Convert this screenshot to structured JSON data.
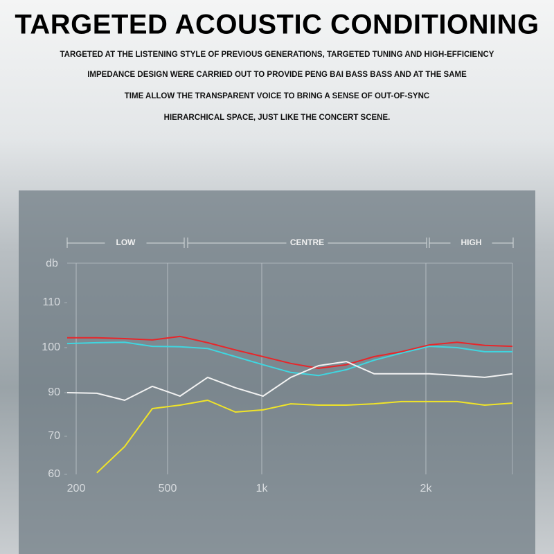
{
  "heading": "TARGETED ACOUSTIC CONDITIONING",
  "description": [
    "TARGETED AT THE LISTENING STYLE OF PREVIOUS GENERATIONS, TARGETED TUNING AND HIGH-EFFICIENCY",
    "IMPEDANCE DESIGN WERE CARRIED OUT TO PROVIDE PENG BAI BASS BASS AND AT THE SAME",
    "TIME ALLOW THE TRANSPARENT VOICE TO BRING A SENSE OF OUT-OF-SYNC",
    "HIERARCHICAL SPACE, JUST LIKE THE CONCERT SCENE."
  ],
  "chart_data": {
    "type": "line",
    "y_label": "db",
    "bands": [
      "LOW",
      "CENTRE",
      "HIGH"
    ],
    "x": [
      170,
      268,
      359,
      450,
      566,
      713,
      860,
      1008,
      1177,
      1346,
      1515,
      1684,
      1852,
      2021,
      2190,
      2358,
      2527
    ],
    "xlim": [
      170,
      2527
    ],
    "xticks": [
      200,
      500,
      {
        "value": 1000,
        "label": "1k"
      },
      {
        "value": 2000,
        "label": "2k"
      }
    ],
    "ylim": [
      60,
      110
    ],
    "yticks": [
      60,
      70,
      90,
      100,
      110
    ],
    "grid": true,
    "series": [
      {
        "name": "red",
        "color": "#e8262a",
        "values": [
          102.2,
          102.2,
          102,
          101.7,
          102.5,
          101.1,
          99.5,
          98,
          96.5,
          95.4,
          96.2,
          98,
          99.1,
          100.6,
          101.2,
          100.5,
          100.3
        ]
      },
      {
        "name": "cyan",
        "color": "#3fd6e0",
        "values": [
          100.9,
          101.1,
          101.2,
          100.3,
          100.2,
          99.8,
          98,
          96.2,
          94.5,
          93.8,
          95.1,
          97.2,
          98.8,
          100.3,
          100,
          99.1,
          99.1
        ]
      },
      {
        "name": "white",
        "color": "#f2f2f2",
        "values": [
          90,
          89.7,
          86.5,
          91.4,
          88.4,
          93.4,
          91.1,
          88.4,
          93.4,
          96,
          96.9,
          94.2,
          94.2,
          94.2,
          93.8,
          93.4,
          94.2
        ]
      },
      {
        "name": "yellow",
        "color": "#f0e428",
        "values": [
          null,
          60.4,
          67.3,
          82.7,
          84.3,
          86.5,
          81.1,
          82.1,
          84.9,
          84.3,
          84.3,
          84.9,
          85.9,
          85.9,
          85.9,
          84.3,
          85.2
        ]
      }
    ]
  }
}
